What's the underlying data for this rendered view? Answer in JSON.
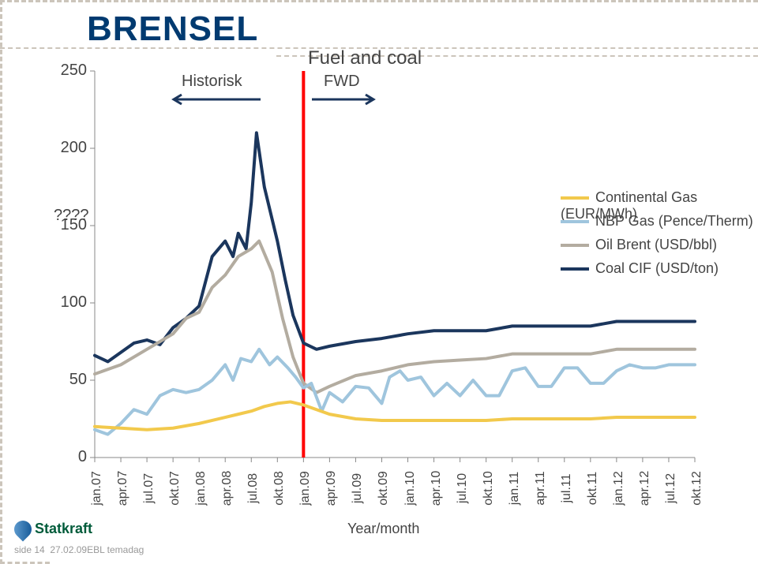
{
  "title": "BRENSEL",
  "subtitle": "Fuel and coal",
  "hist_label": "Historisk",
  "fwd_label": "FWD",
  "qmark": "????",
  "xaxis_title": "Year/month",
  "footer_page": "side 14",
  "footer_date": "27.02.09EBL temadag",
  "logo_text": "Statkraft",
  "legend": [
    {
      "label": "Continental Gas (EUR/MWh)",
      "color": "#f2c94c"
    },
    {
      "label": "NBP Gas (Pence/Therm)",
      "color": "#9fc5dd"
    },
    {
      "label": "Oil Brent (USD/bbl)",
      "color": "#b3aca0"
    },
    {
      "label": "Coal CIF (USD/ton)",
      "color": "#1b365d"
    }
  ],
  "chart": {
    "type": "line",
    "background_color": "#ffffff",
    "ylim": [
      0,
      250
    ],
    "ytick_step": 50,
    "vline_x": 8,
    "vline_color": "#ff0000",
    "xticks": [
      "jan.07",
      "apr.07",
      "jul.07",
      "okt.07",
      "jan.08",
      "apr.08",
      "jul.08",
      "okt.08",
      "jan.09",
      "apr.09",
      "jul.09",
      "okt.09",
      "jan.10",
      "apr.10",
      "jul.10",
      "okt.10",
      "jan.11",
      "apr.11",
      "jul.11",
      "okt.11",
      "jan.12",
      "apr.12",
      "jul.12",
      "okt.12"
    ],
    "line_width": 4,
    "series": [
      {
        "color": "#1b365d",
        "data": [
          [
            0,
            66
          ],
          [
            0.5,
            62
          ],
          [
            1,
            68
          ],
          [
            1.5,
            74
          ],
          [
            2,
            76
          ],
          [
            2.5,
            73
          ],
          [
            3,
            84
          ],
          [
            3.5,
            90
          ],
          [
            4,
            98
          ],
          [
            4.5,
            130
          ],
          [
            5,
            140
          ],
          [
            5.3,
            130
          ],
          [
            5.5,
            145
          ],
          [
            5.8,
            135
          ],
          [
            6,
            165
          ],
          [
            6.2,
            210
          ],
          [
            6.5,
            175
          ],
          [
            7,
            140
          ],
          [
            7.3,
            115
          ],
          [
            7.6,
            92
          ],
          [
            8,
            74
          ],
          [
            8.5,
            70
          ],
          [
            9,
            72
          ],
          [
            10,
            75
          ],
          [
            11,
            77
          ],
          [
            12,
            80
          ],
          [
            13,
            82
          ],
          [
            14,
            82
          ],
          [
            15,
            82
          ],
          [
            16,
            85
          ],
          [
            17,
            85
          ],
          [
            18,
            85
          ],
          [
            19,
            85
          ],
          [
            20,
            88
          ],
          [
            21,
            88
          ],
          [
            22,
            88
          ],
          [
            23,
            88
          ]
        ]
      },
      {
        "color": "#b3aca0",
        "data": [
          [
            0,
            54
          ],
          [
            1,
            60
          ],
          [
            2,
            70
          ],
          [
            3,
            80
          ],
          [
            3.5,
            90
          ],
          [
            4,
            94
          ],
          [
            4.5,
            110
          ],
          [
            5,
            118
          ],
          [
            5.5,
            130
          ],
          [
            6,
            135
          ],
          [
            6.3,
            140
          ],
          [
            6.8,
            120
          ],
          [
            7.2,
            90
          ],
          [
            7.6,
            65
          ],
          [
            8,
            48
          ],
          [
            8.5,
            42
          ],
          [
            9,
            46
          ],
          [
            10,
            53
          ],
          [
            11,
            56
          ],
          [
            12,
            60
          ],
          [
            13,
            62
          ],
          [
            14,
            63
          ],
          [
            15,
            64
          ],
          [
            16,
            67
          ],
          [
            17,
            67
          ],
          [
            18,
            67
          ],
          [
            19,
            67
          ],
          [
            20,
            70
          ],
          [
            21,
            70
          ],
          [
            22,
            70
          ],
          [
            23,
            70
          ]
        ]
      },
      {
        "color": "#9fc5dd",
        "data": [
          [
            0,
            18
          ],
          [
            0.5,
            15
          ],
          [
            1,
            22
          ],
          [
            1.5,
            31
          ],
          [
            2,
            28
          ],
          [
            2.5,
            40
          ],
          [
            3,
            44
          ],
          [
            3.5,
            42
          ],
          [
            4,
            44
          ],
          [
            4.5,
            50
          ],
          [
            5,
            60
          ],
          [
            5.3,
            50
          ],
          [
            5.6,
            64
          ],
          [
            6,
            62
          ],
          [
            6.3,
            70
          ],
          [
            6.7,
            60
          ],
          [
            7,
            65
          ],
          [
            7.4,
            58
          ],
          [
            7.7,
            52
          ],
          [
            8,
            45
          ],
          [
            8.3,
            48
          ],
          [
            8.7,
            30
          ],
          [
            9,
            42
          ],
          [
            9.5,
            36
          ],
          [
            10,
            46
          ],
          [
            10.5,
            45
          ],
          [
            11,
            35
          ],
          [
            11.3,
            52
          ],
          [
            11.7,
            56
          ],
          [
            12,
            50
          ],
          [
            12.5,
            52
          ],
          [
            13,
            40
          ],
          [
            13.5,
            48
          ],
          [
            14,
            40
          ],
          [
            14.5,
            50
          ],
          [
            15,
            40
          ],
          [
            15.5,
            40
          ],
          [
            16,
            56
          ],
          [
            16.5,
            58
          ],
          [
            17,
            46
          ],
          [
            17.5,
            46
          ],
          [
            18,
            58
          ],
          [
            18.5,
            58
          ],
          [
            19,
            48
          ],
          [
            19.5,
            48
          ],
          [
            20,
            56
          ],
          [
            20.5,
            60
          ],
          [
            21,
            58
          ],
          [
            21.5,
            58
          ],
          [
            22,
            60
          ],
          [
            22.5,
            60
          ],
          [
            23,
            60
          ]
        ]
      },
      {
        "color": "#f2c94c",
        "data": [
          [
            0,
            20
          ],
          [
            1,
            19
          ],
          [
            2,
            18
          ],
          [
            3,
            19
          ],
          [
            4,
            22
          ],
          [
            5,
            26
          ],
          [
            5.5,
            28
          ],
          [
            6,
            30
          ],
          [
            6.5,
            33
          ],
          [
            7,
            35
          ],
          [
            7.5,
            36
          ],
          [
            8,
            34
          ],
          [
            8.5,
            31
          ],
          [
            9,
            28
          ],
          [
            10,
            25
          ],
          [
            11,
            24
          ],
          [
            12,
            24
          ],
          [
            13,
            24
          ],
          [
            14,
            24
          ],
          [
            15,
            24
          ],
          [
            16,
            25
          ],
          [
            17,
            25
          ],
          [
            18,
            25
          ],
          [
            19,
            25
          ],
          [
            20,
            26
          ],
          [
            21,
            26
          ],
          [
            22,
            26
          ],
          [
            23,
            26
          ]
        ]
      }
    ]
  }
}
